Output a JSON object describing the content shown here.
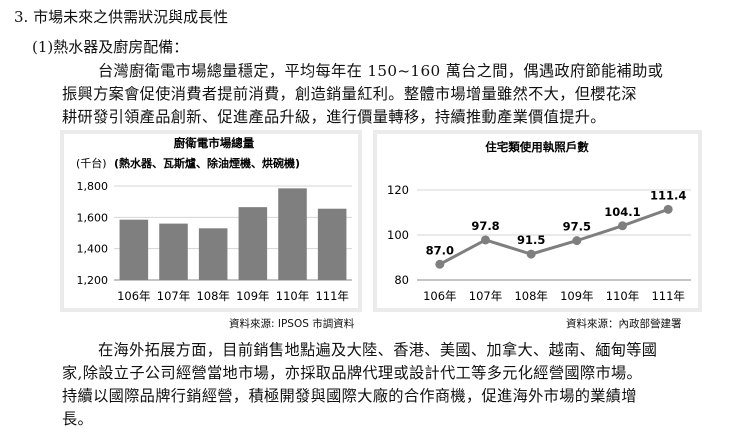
{
  "section": {
    "heading": "3. 市場未來之供需狀況與成長性",
    "subheading": "(1)熱水器及廚房配備：",
    "para1": [
      "台灣廚衛電市場總量穩定，平均每年在 150~160 萬台之間，偶遇政府節能補助或",
      "振興方案會促使消費者提前消費，創造銷量紅利。整體市場增量雖然不大，但櫻花深",
      "耕研發引領產品創新、促進產品升級，進行價量轉移，持續推動產業價值提升。"
    ],
    "para2": [
      "在海外拓展方面，目前銷售地點遍及大陸、香港、美國、加拿大、越南、緬甸等國",
      "家,除設立子公司經營當地市場，亦採取品牌代理或設計代工等多元化經營國際市場。",
      "持續以國際品牌行銷經營，積極開發與國際大廠的合作商機，促進海外市場的業績增",
      "長。"
    ]
  },
  "left_source": "資料來源: IPSOS 市調資料",
  "right_source": "資料來源：內政部營建署",
  "chart_data": [
    {
      "type": "bar",
      "title": "廚衛電市場總量",
      "subtitle": "(熱水器、瓦斯爐、除油煙機、烘碗機)",
      "ylabel": "(千台)",
      "categories": [
        "106年",
        "107年",
        "108年",
        "109年",
        "110年",
        "111年"
      ],
      "values": [
        1585,
        1560,
        1530,
        1665,
        1785,
        1655
      ],
      "ylim": [
        1200,
        1800
      ],
      "yticks": [
        "1,800",
        "1,600",
        "1,400",
        "1,200"
      ],
      "ytick_values": [
        1800,
        1600,
        1400,
        1200
      ],
      "grid": true,
      "bar_color": "#7f7f7f"
    },
    {
      "type": "line",
      "title": "住宅類使用執照戶數",
      "categories": [
        "106年",
        "107年",
        "108年",
        "109年",
        "110年",
        "111年"
      ],
      "values": [
        87.0,
        97.8,
        91.5,
        97.5,
        104.1,
        111.4
      ],
      "data_labels": [
        "87.0",
        "97.8",
        "91.5",
        "97.5",
        "104.1",
        "111.4"
      ],
      "ylim": [
        80,
        120
      ],
      "yticks": [
        "120",
        "100",
        "80"
      ],
      "ytick_values": [
        120,
        100,
        80
      ],
      "grid": true,
      "line_color": "#7f7f7f"
    }
  ]
}
